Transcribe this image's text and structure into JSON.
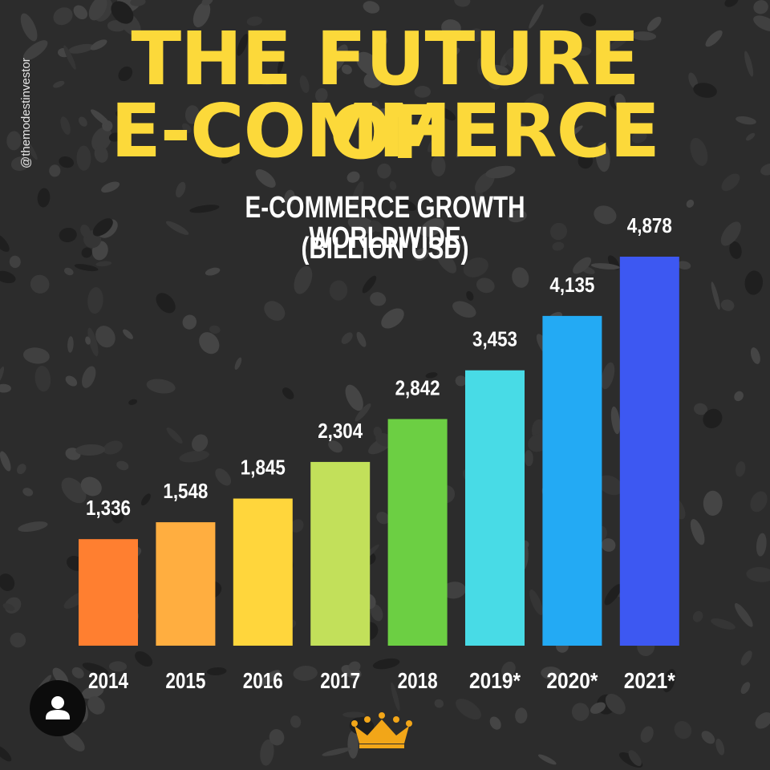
{
  "header": {
    "title_line1": "THE FUTURE OF",
    "title_line2": "E-COMMERCE",
    "handle": "@themodestinvestor"
  },
  "chart_data": {
    "type": "bar",
    "title": "E-COMMERCE GROWTH WORLDWIDE",
    "subtitle": "(BILLION USD)",
    "categories": [
      "2014",
      "2015",
      "2016",
      "2017",
      "2018",
      "2019*",
      "2020*",
      "2021*"
    ],
    "values": [
      1336,
      1548,
      1845,
      2304,
      2842,
      3453,
      4135,
      4878
    ],
    "value_labels": [
      "1,336",
      "1,548",
      "1,845",
      "2,304",
      "2,842",
      "3,453",
      "4,135",
      "4,878"
    ],
    "colors": [
      "#ff7f30",
      "#ffae40",
      "#ffd63c",
      "#c2e05a",
      "#6ccf43",
      "#48dbe6",
      "#23aaf4",
      "#3d58f2"
    ],
    "ylim": [
      0,
      5000
    ],
    "grid": false,
    "legend": "none"
  },
  "icons": {
    "avatar": "user-avatar-icon",
    "crown": "crown-icon"
  }
}
